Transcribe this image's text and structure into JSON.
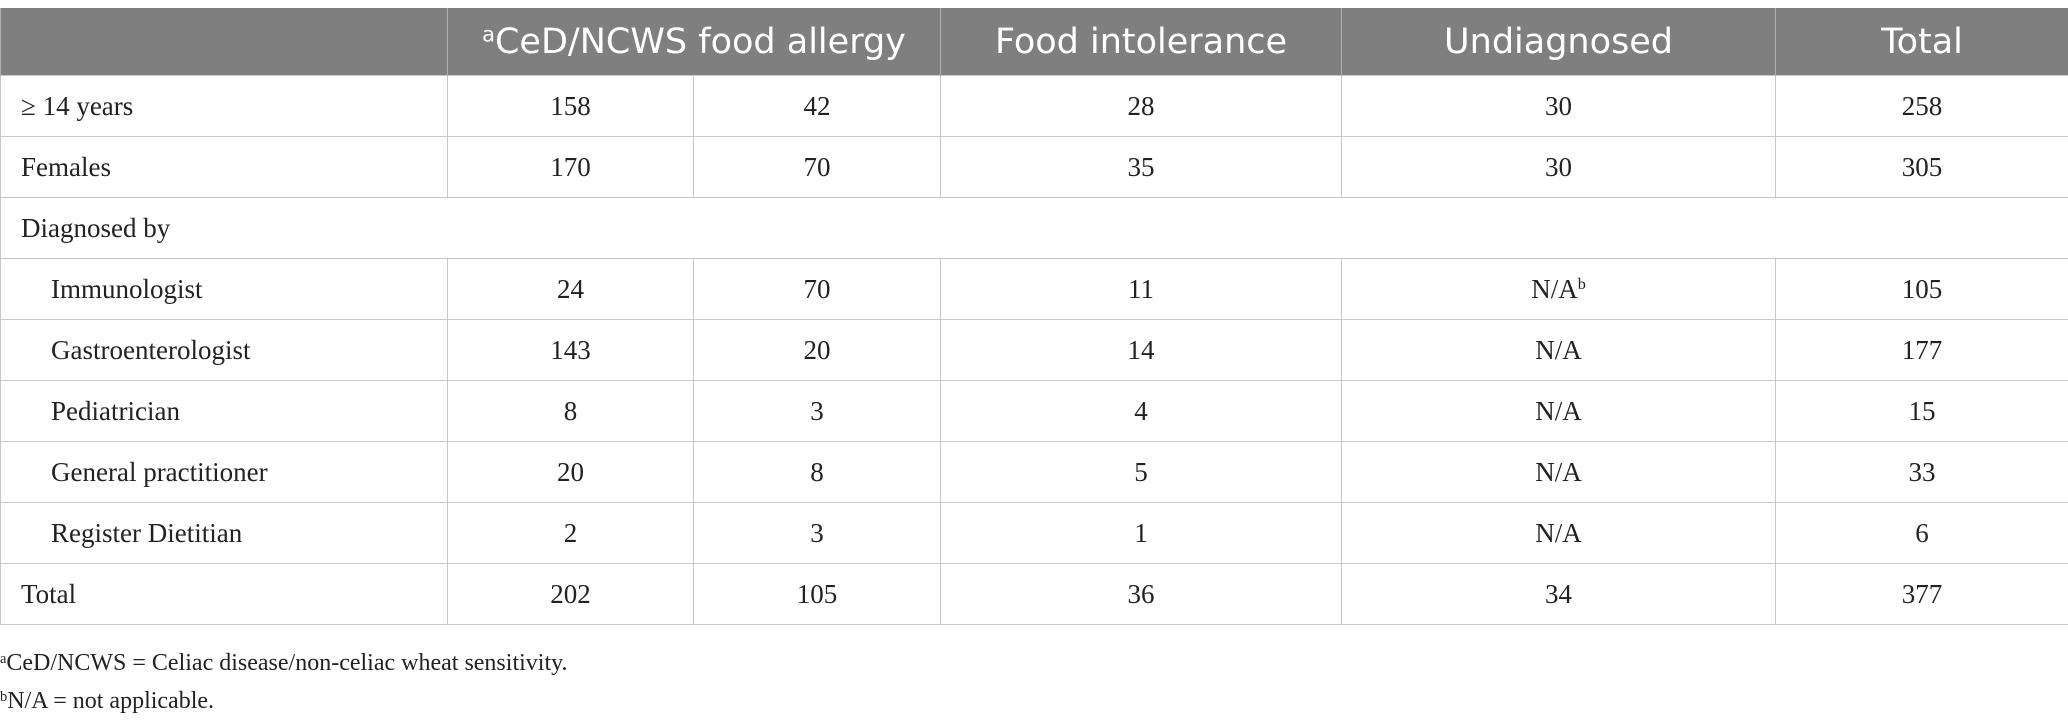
{
  "table": {
    "columns": [
      {
        "sup": "",
        "label": ""
      },
      {
        "sup": "a",
        "label": "CeD/NCWS food allergy"
      },
      {
        "sup": "",
        "label": "Food intolerance"
      },
      {
        "sup": "",
        "label": "Undiagnosed"
      },
      {
        "sup": "",
        "label": "Total"
      }
    ],
    "rows": [
      {
        "label": "≥ 14 years",
        "indent": false,
        "cells": [
          "158",
          "42",
          "28",
          "30",
          "258"
        ]
      },
      {
        "label": "Females",
        "indent": false,
        "cells": [
          "170",
          "70",
          "35",
          "30",
          "305"
        ]
      },
      {
        "section": "Diagnosed by"
      },
      {
        "label": "Immunologist",
        "indent": true,
        "cells": [
          "24",
          "70",
          "11",
          "N/A",
          "105"
        ],
        "undiag_sup": "b"
      },
      {
        "label": "Gastroenterologist",
        "indent": true,
        "cells": [
          "143",
          "20",
          "14",
          "N/A",
          "177"
        ]
      },
      {
        "label": "Pediatrician",
        "indent": true,
        "cells": [
          "8",
          "3",
          "4",
          "N/A",
          "15"
        ]
      },
      {
        "label": "General practitioner",
        "indent": true,
        "cells": [
          "20",
          "8",
          "5",
          "N/A",
          "33"
        ]
      },
      {
        "label": "Register Dietitian",
        "indent": true,
        "cells": [
          "2",
          "3",
          "1",
          "N/A",
          "6"
        ]
      },
      {
        "label": "Total",
        "indent": false,
        "cells": [
          "202",
          "105",
          "36",
          "34",
          "377"
        ]
      }
    ]
  },
  "footnotes": [
    {
      "sup": "a",
      "text": "CeD/NCWS = Celiac disease/non-celiac wheat sensitivity."
    },
    {
      "sup": "b",
      "text": "N/A = not applicable."
    }
  ]
}
